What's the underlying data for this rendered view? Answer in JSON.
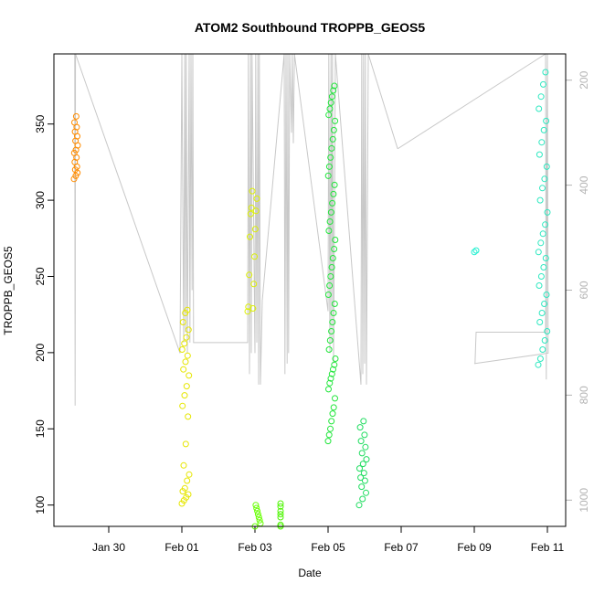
{
  "chart_data": {
    "type": "scatter",
    "title": "ATOM2 Southbound TROPPB_GEOS5",
    "xlabel": "Date",
    "ylabel": "TROPPB_GEOS5",
    "x_unit": "days since Jan 30",
    "xlim": [
      -1.5,
      12.5
    ],
    "ylim": [
      86,
      396
    ],
    "y_ticks": [
      100,
      150,
      200,
      250,
      300,
      350
    ],
    "x_ticks": [
      {
        "value": 0,
        "label": "Jan 30"
      },
      {
        "value": 2,
        "label": "Feb 01"
      },
      {
        "value": 4,
        "label": "Feb 03"
      },
      {
        "value": 6,
        "label": "Feb 05"
      },
      {
        "value": 8,
        "label": "Feb 07"
      },
      {
        "value": 10,
        "label": "Feb 09"
      },
      {
        "value": 12,
        "label": "Feb 11"
      }
    ],
    "secondary_axis": {
      "ylim": [
        1050,
        150
      ],
      "ticks": [
        200,
        400,
        600,
        800,
        1000
      ],
      "color": "#b4b4b4"
    },
    "series": [
      {
        "color": "#ff8c00",
        "x_range": [
          -0.95,
          -0.85
        ],
        "values": [
          314,
          316,
          318,
          320,
          322,
          325,
          328,
          331,
          333,
          336,
          339,
          342,
          345,
          348,
          351,
          355
        ]
      },
      {
        "color": "#e6e600",
        "x_range": [
          2.0,
          2.2
        ],
        "values": [
          101,
          103,
          105,
          107,
          109,
          111,
          116,
          120,
          126,
          140,
          158,
          165,
          172,
          178,
          185,
          189,
          194,
          198,
          202,
          206,
          210,
          215,
          220,
          226,
          228
        ]
      },
      {
        "color": "#dcf000",
        "x_range": [
          3.8,
          4.05
        ],
        "values": [
          227,
          229,
          230,
          245,
          251,
          263,
          276,
          281,
          291,
          293,
          295,
          301,
          306
        ]
      },
      {
        "color": "#66ff00",
        "x_range": [
          4.0,
          4.15
        ],
        "values": [
          86,
          88,
          90,
          92,
          94,
          96,
          98,
          100
        ]
      },
      {
        "color": "#4cf500",
        "x_range": [
          4.7,
          5.1
        ],
        "values": [
          86,
          87,
          92,
          94,
          96,
          99,
          101
        ]
      },
      {
        "color": "#22e63c",
        "x_range": [
          6.0,
          6.2
        ],
        "values": [
          142,
          146,
          150,
          155,
          160,
          164,
          170,
          176,
          180,
          183,
          186,
          189,
          192,
          196,
          202,
          208,
          214,
          220,
          226,
          232,
          238,
          244,
          250,
          256,
          262,
          268,
          274,
          280,
          286,
          292,
          298,
          304,
          310,
          316,
          322,
          328,
          334,
          340,
          346,
          352,
          356,
          360,
          364,
          368,
          372,
          375
        ]
      },
      {
        "color": "#20dd60",
        "x_range": [
          6.85,
          7.05
        ],
        "values": [
          100,
          104,
          108,
          112,
          116,
          118,
          121,
          124,
          127,
          130,
          134,
          138,
          142,
          146,
          151,
          155
        ]
      },
      {
        "color": "#20f0d0",
        "x_range": [
          10.0,
          10.05
        ],
        "values": [
          266,
          267
        ]
      },
      {
        "color": "#2ee8c0",
        "x_range": [
          11.75,
          12.0
        ],
        "values": [
          192,
          196,
          202,
          208,
          214,
          220,
          226,
          232,
          238,
          244,
          250,
          256,
          262,
          266,
          272,
          278,
          284,
          292,
          300,
          308,
          314,
          322,
          330,
          338,
          346,
          352,
          360,
          368,
          376,
          384
        ]
      }
    ],
    "secondary_line": {
      "color": "#c8c8c8",
      "x": [
        -0.93,
        -0.92,
        -0.92,
        -0.91,
        1.95,
        2.0,
        2.05,
        2.08,
        2.1,
        2.12,
        2.15,
        2.2,
        2.22,
        2.25,
        2.28,
        2.3,
        2.32,
        3.8,
        3.82,
        3.85,
        3.88,
        3.9,
        3.92,
        4.0,
        4.02,
        4.05,
        4.08,
        4.1,
        4.12,
        4.15,
        4.2,
        4.8,
        4.82,
        4.85,
        4.88,
        4.9,
        4.92,
        4.95,
        5.0,
        5.02,
        5.05,
        5.08,
        6.0,
        6.02,
        6.05,
        6.08,
        6.1,
        6.12,
        6.15,
        6.2,
        6.9,
        6.92,
        6.95,
        6.97,
        7.0,
        7.02,
        7.05,
        7.1,
        7.9,
        7.92,
        11.95,
        11.97,
        12.0,
        12.02,
        10.0,
        10.02,
        10.05,
        11.95,
        12.0
      ],
      "p": [
        150,
        820,
        820,
        150,
        720,
        150,
        700,
        150,
        680,
        150,
        720,
        150,
        700,
        150,
        600,
        150,
        700,
        700,
        150,
        760,
        150,
        720,
        150,
        720,
        150,
        700,
        150,
        780,
        150,
        780,
        620,
        150,
        760,
        150,
        740,
        150,
        720,
        150,
        300,
        150,
        320,
        150,
        640,
        150,
        720,
        150,
        700,
        150,
        740,
        150,
        780,
        150,
        760,
        150,
        740,
        150,
        780,
        150,
        330,
        330,
        150,
        770,
        150,
        720,
        740,
        740,
        680,
        680,
        150
      ]
    }
  }
}
